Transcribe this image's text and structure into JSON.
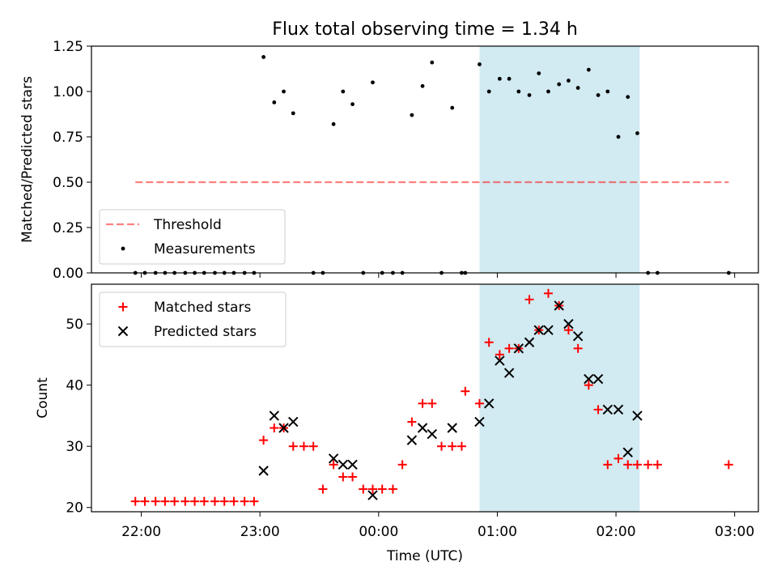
{
  "chart_data": [
    {
      "type": "scatter",
      "title": "Flux total observing time = 1.34 h",
      "xlabel": "",
      "ylabel": "Matched/Predicted stars",
      "ylim": [
        0,
        1.25
      ],
      "yticks": [
        "0.00",
        "0.25",
        "0.50",
        "0.75",
        "1.00",
        "1.25"
      ],
      "xlim_hours": [
        21.58,
        27.2
      ],
      "highlight_span_hours": [
        24.85,
        26.2
      ],
      "highlight_color": "#add8e6",
      "legend_position": "lower-left",
      "threshold": {
        "name": "Threshold",
        "value": 0.5,
        "x_range_hours": [
          21.95,
          26.95
        ],
        "color": "#ff0000"
      },
      "series": [
        {
          "name": "Measurements",
          "color": "#000000",
          "x_hours": [
            21.95,
            22.03,
            22.12,
            22.2,
            22.28,
            22.37,
            22.45,
            22.53,
            22.62,
            22.7,
            22.78,
            22.87,
            22.95,
            23.03,
            23.12,
            23.2,
            23.28,
            23.45,
            23.53,
            23.62,
            23.7,
            23.78,
            23.87,
            23.95,
            24.03,
            24.12,
            24.2,
            24.28,
            24.37,
            24.45,
            24.53,
            24.62,
            24.7,
            24.73,
            24.85,
            24.93,
            25.02,
            25.1,
            25.18,
            25.27,
            25.35,
            25.43,
            25.52,
            25.6,
            25.68,
            25.77,
            25.85,
            25.93,
            26.02,
            26.1,
            26.18,
            26.27,
            26.35,
            26.95
          ],
          "y": [
            0,
            0,
            0,
            0,
            0,
            0,
            0,
            0,
            0,
            0,
            0,
            0,
            0,
            1.19,
            0.94,
            1.0,
            0.88,
            0,
            0,
            0.82,
            1.0,
            0.93,
            0,
            1.05,
            0,
            0,
            0,
            0.87,
            1.03,
            1.16,
            0,
            0.91,
            0,
            0,
            1.15,
            1.0,
            1.07,
            1.07,
            1.0,
            0.98,
            1.1,
            1.0,
            1.04,
            1.06,
            1.02,
            1.12,
            0.98,
            1.0,
            0.75,
            0.97,
            0.77,
            0,
            0,
            0
          ]
        }
      ]
    },
    {
      "type": "scatter",
      "title": "",
      "xlabel": "Time (UTC)",
      "ylabel": "Count",
      "ylim": [
        19.3,
        56.5
      ],
      "yticks": [
        "20",
        "30",
        "40",
        "50"
      ],
      "xticks": [
        "22:00",
        "23:00",
        "00:00",
        "01:00",
        "02:00",
        "03:00"
      ],
      "xlim_hours": [
        21.58,
        27.2
      ],
      "highlight_span_hours": [
        24.85,
        26.2
      ],
      "legend_position": "upper-left",
      "series": [
        {
          "name": "Matched stars",
          "color": "#ff0000",
          "marker": "plus",
          "x_hours": [
            21.95,
            22.03,
            22.12,
            22.2,
            22.28,
            22.37,
            22.45,
            22.53,
            22.62,
            22.7,
            22.78,
            22.87,
            22.95,
            23.03,
            23.12,
            23.2,
            23.28,
            23.37,
            23.45,
            23.53,
            23.62,
            23.7,
            23.78,
            23.87,
            23.95,
            24.03,
            24.12,
            24.2,
            24.28,
            24.37,
            24.45,
            24.53,
            24.62,
            24.7,
            24.73,
            24.85,
            24.93,
            25.02,
            25.1,
            25.18,
            25.27,
            25.35,
            25.43,
            25.52,
            25.6,
            25.68,
            25.77,
            25.85,
            25.93,
            26.02,
            26.1,
            26.18,
            26.27,
            26.35,
            26.95
          ],
          "y": [
            21,
            21,
            21,
            21,
            21,
            21,
            21,
            21,
            21,
            21,
            21,
            21,
            21,
            31,
            33,
            33,
            30,
            30,
            30,
            23,
            27,
            25,
            25,
            23,
            23,
            23,
            23,
            27,
            34,
            37,
            37,
            30,
            30,
            30,
            39,
            37,
            47,
            45,
            46,
            46,
            54,
            49,
            55,
            53,
            49,
            46,
            40,
            36,
            27,
            28,
            27,
            27,
            27,
            27,
            27
          ]
        },
        {
          "name": "Predicted stars",
          "color": "#000000",
          "marker": "x",
          "x_hours": [
            23.03,
            23.12,
            23.2,
            23.28,
            23.62,
            23.7,
            23.78,
            23.95,
            24.28,
            24.37,
            24.45,
            24.62,
            24.85,
            24.93,
            25.02,
            25.1,
            25.18,
            25.27,
            25.35,
            25.43,
            25.52,
            25.6,
            25.68,
            25.77,
            25.85,
            25.93,
            26.02,
            26.1,
            26.18
          ],
          "y": [
            26,
            35,
            33,
            34,
            28,
            27,
            27,
            22,
            31,
            33,
            32,
            33,
            34,
            37,
            44,
            42,
            46,
            47,
            49,
            49,
            53,
            50,
            48,
            41,
            41,
            36,
            36,
            29,
            35
          ]
        }
      ]
    }
  ]
}
